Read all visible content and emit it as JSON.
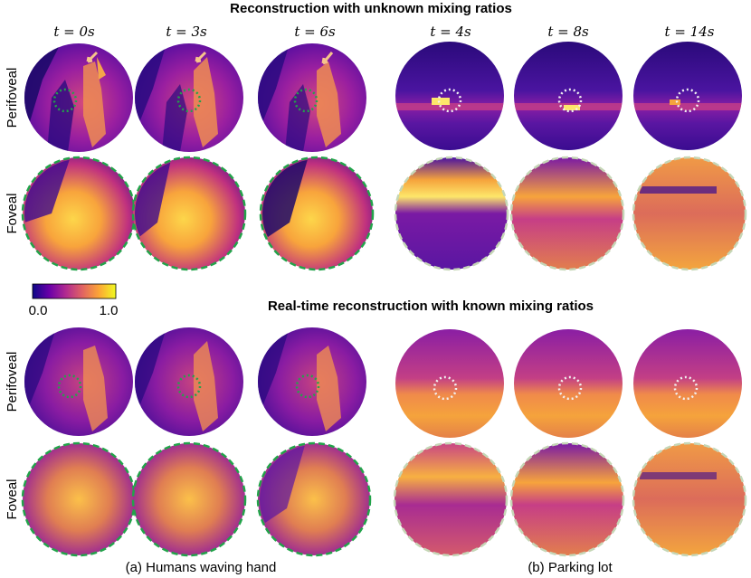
{
  "panel_top": {
    "title": "Reconstruction with unknown mixing ratios"
  },
  "panel_bottom": {
    "title": "Real-time reconstruction with known mixing ratios"
  },
  "time_labels": {
    "human": [
      "t = 0s",
      "t = 3s",
      "t = 6s"
    ],
    "parking": [
      "t = 4s",
      "t = 8s",
      "t = 14s"
    ]
  },
  "row_labels": {
    "perifoveal": "Perifoveal",
    "foveal": "Foveal"
  },
  "colorbar": {
    "min_label": "0.0",
    "max_label": "1.0",
    "colormap": "plasma",
    "colors": [
      "#0d0887",
      "#6a00a8",
      "#b12a90",
      "#e16462",
      "#fca636",
      "#f0f921"
    ]
  },
  "captions": {
    "a": "(a) Humans waving hand",
    "b": "(b) Parking lot"
  },
  "marker_colors": {
    "human_roi": "#22a34a",
    "parking_roi": "#f2f2f2",
    "foveal_human_border": "#22a34a",
    "foveal_parking_border": "#c5d6b6",
    "arrow": "#f6c48a"
  }
}
